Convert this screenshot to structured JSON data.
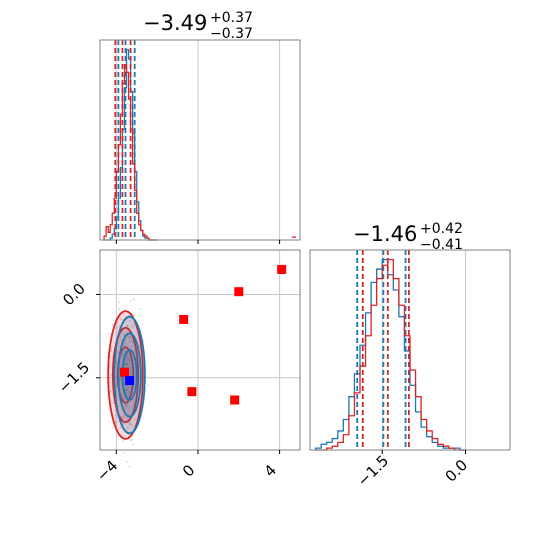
{
  "colors": {
    "blue": "#1f77b4",
    "red": "#d62728",
    "marker_red": "#ff0000",
    "marker_blue": "#0000ff",
    "grid": "#c8c8c8"
  },
  "chart_data": {
    "type": "corner",
    "panels": [
      {
        "kind": "histogram",
        "param": "p1",
        "title": {
          "median": "−3.49",
          "plus": "+0.37",
          "minus": "−0.37"
        },
        "xlim": [
          -4.8,
          5.0
        ],
        "grid_x": [
          -4,
          0,
          4
        ],
        "bins": [
          -4.6,
          -4.5,
          -4.4,
          -4.3,
          -4.2,
          -4.1,
          -4.0,
          -3.9,
          -3.8,
          -3.7,
          -3.6,
          -3.5,
          -3.4,
          -3.3,
          -3.2,
          -3.1,
          -3.0,
          -2.9,
          -2.8,
          -2.7,
          -2.6,
          -2.5,
          -2.4,
          -2.3,
          -2.2,
          -2.1,
          -2.0
        ],
        "series": [
          {
            "name": "blue",
            "counts": [
              0,
              0,
              0,
              1,
              3,
              6,
              12,
              22,
              38,
              58,
              80,
              100,
              95,
              78,
              56,
              36,
              20,
              10,
              5,
              2,
              1,
              1,
              0,
              0,
              0,
              0
            ],
            "quantiles": [
              -3.9,
              -3.55,
              -3.1
            ]
          },
          {
            "name": "red",
            "counts": [
              2,
              7,
              4,
              8,
              14,
              22,
              36,
              50,
              66,
              82,
              92,
              88,
              74,
              58,
              40,
              26,
              14,
              8,
              5,
              3,
              2,
              1,
              0,
              0,
              0,
              0
            ],
            "quantiles": [
              -4.05,
              -3.7,
              -3.3
            ]
          }
        ],
        "tail": {
          "x": [
            4.6,
            4.8
          ],
          "count": 1
        }
      },
      {
        "kind": "histogram",
        "param": "p2",
        "title": {
          "median": "−1.46",
          "plus": "+0.42",
          "minus": "−0.41"
        },
        "xlim": [
          -2.8,
          0.8
        ],
        "xticks": [
          -1.5,
          0.0
        ],
        "xtick_labels": [
          "−1.5",
          "0.0"
        ],
        "bins": [
          -2.7,
          -2.6,
          -2.5,
          -2.4,
          -2.3,
          -2.2,
          -2.1,
          -2.0,
          -1.9,
          -1.8,
          -1.7,
          -1.6,
          -1.5,
          -1.4,
          -1.3,
          -1.2,
          -1.1,
          -1.0,
          -0.9,
          -0.8,
          -0.7,
          -0.6,
          -0.5,
          -0.4,
          -0.3,
          -0.2,
          -0.1,
          0.0
        ],
        "series": [
          {
            "name": "blue",
            "counts": [
              1,
              3,
              4,
              6,
              10,
              16,
              28,
              40,
              55,
              72,
              88,
              95,
              100,
              92,
              84,
              70,
              52,
              34,
              20,
              12,
              7,
              4,
              2,
              1,
              1,
              1,
              0
            ],
            "quantiles": [
              -1.95,
              -1.48,
              -1.08
            ]
          },
          {
            "name": "red",
            "counts": [
              0,
              0,
              1,
              2,
              4,
              8,
              18,
              30,
              44,
              60,
              76,
              90,
              97,
              100,
              90,
              76,
              60,
              42,
              28,
              16,
              10,
              6,
              3,
              2,
              1,
              0,
              0
            ],
            "quantiles": [
              -1.85,
              -1.4,
              -1.02
            ]
          }
        ]
      },
      {
        "kind": "2d",
        "x_param": "p1",
        "y_param": "p2",
        "xlim": [
          -4.8,
          5.0
        ],
        "ylim": [
          -2.8,
          0.8
        ],
        "xticks": [
          -4,
          0,
          4
        ],
        "xtick_labels": [
          "−4",
          "0",
          "4"
        ],
        "yticks": [
          0.0,
          -1.5
        ],
        "ytick_labels": [
          "0.0",
          "−1.5"
        ],
        "contours": [
          {
            "name": "blue",
            "center": [
              -3.35,
              -1.45
            ],
            "widths": [
              0.35,
              0.55,
              0.75
            ],
            "heights": [
              0.45,
              0.75,
              1.05
            ]
          },
          {
            "name": "red",
            "center": [
              -3.55,
              -1.45
            ],
            "widths": [
              0.38,
              0.62,
              0.85
            ],
            "heights": [
              0.5,
              0.85,
              1.15
            ]
          }
        ],
        "markers": [
          {
            "x": 4.1,
            "y": 0.45,
            "color": "red"
          },
          {
            "x": 2.0,
            "y": 0.05,
            "color": "red"
          },
          {
            "x": -0.7,
            "y": -0.45,
            "color": "red"
          },
          {
            "x": -0.3,
            "y": -1.75,
            "color": "red"
          },
          {
            "x": 1.8,
            "y": -1.9,
            "color": "red"
          },
          {
            "x": -3.6,
            "y": -1.4,
            "color": "red"
          },
          {
            "x": -3.35,
            "y": -1.55,
            "color": "blue"
          }
        ]
      }
    ]
  }
}
